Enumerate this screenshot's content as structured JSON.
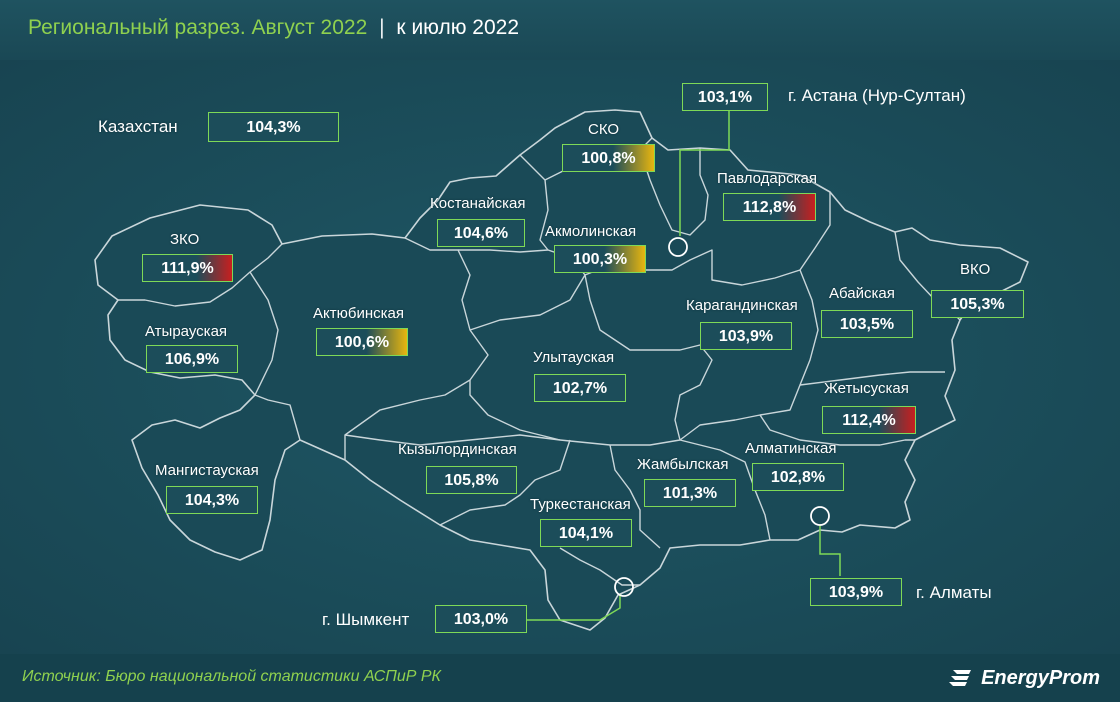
{
  "header": {
    "title": "Региональный разрез. Август 2022",
    "separator": "|",
    "subtitle": "к июлю 2022"
  },
  "country": {
    "name": "Казахстан",
    "value": "104,3%"
  },
  "regions": {
    "sko": {
      "name": "СКО",
      "value": "100,8%"
    },
    "pavlodar": {
      "name": "Павлодарская",
      "value": "112,8%"
    },
    "kostanay": {
      "name": "Костанайская",
      "value": "104,6%"
    },
    "akmola": {
      "name": "Акмолинская",
      "value": "100,3%"
    },
    "zko": {
      "name": "ЗКО",
      "value": "111,9%"
    },
    "aktobe": {
      "name": "Актюбинская",
      "value": "100,6%"
    },
    "atyrau": {
      "name": "Атырауская",
      "value": "106,9%"
    },
    "karaganda": {
      "name": "Карагандинская",
      "value": "103,9%"
    },
    "abay": {
      "name": "Абайская",
      "value": "103,5%"
    },
    "vko": {
      "name": "ВКО",
      "value": "105,3%"
    },
    "ulytau": {
      "name": "Улытауская",
      "value": "102,7%"
    },
    "zhetysu": {
      "name": "Жетысуская",
      "value": "112,4%"
    },
    "mangistau": {
      "name": "Мангистауская",
      "value": "104,3%"
    },
    "kyzylorda": {
      "name": "Кызылординская",
      "value": "105,8%"
    },
    "zhambyl": {
      "name": "Жамбылская",
      "value": "101,3%"
    },
    "almaty_region": {
      "name": "Алматинская",
      "value": "102,8%"
    },
    "turkestan": {
      "name": "Туркестанская",
      "value": "104,1%"
    }
  },
  "cities": {
    "astana": {
      "name": "г. Астана (Нур-Султан)",
      "value": "103,1%"
    },
    "almaty": {
      "name": "г. Алматы",
      "value": "103,9%"
    },
    "shymkent": {
      "name": "г. Шымкент",
      "value": "103,0%"
    }
  },
  "colors": {
    "background": "#1c4d5a",
    "accent_green": "#7ed957",
    "high_red": "#c81f1f",
    "low_yellow": "#e8b60f"
  },
  "footer": {
    "source": "Источник: Бюро национальной статистики АСПиР РК",
    "brand": "EnergyProm"
  }
}
